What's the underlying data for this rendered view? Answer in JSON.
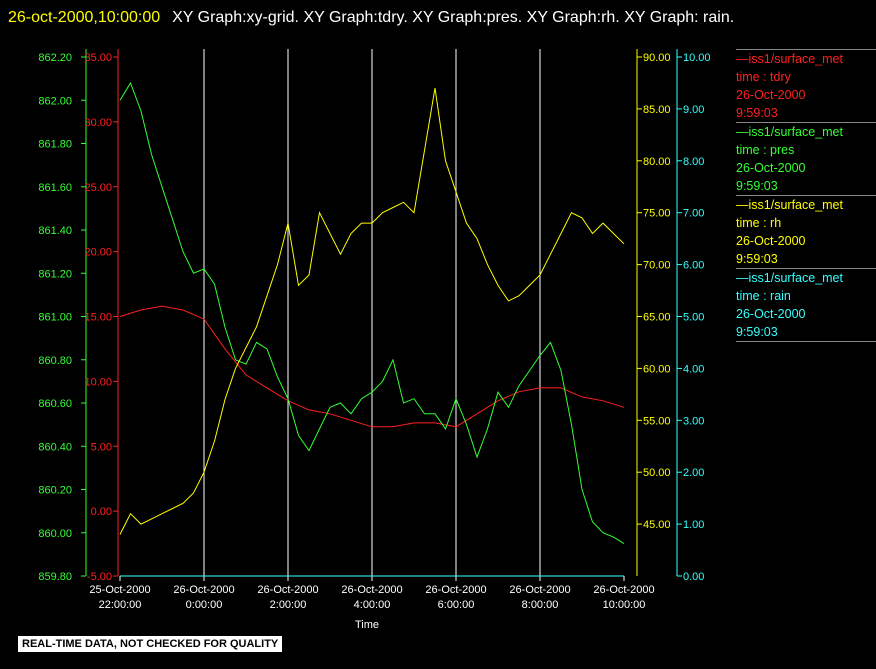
{
  "header": {
    "timestamp": "26-oct-2000,10:00:00",
    "titles": "XY Graph:xy-grid.  XY Graph:tdry.  XY Graph:pres.  XY Graph:rh.  XY Graph: rain."
  },
  "disclaimer": "REAL-TIME DATA, NOT CHECKED FOR QUALITY",
  "colors": {
    "tdry": "#ff2020",
    "pres": "#33ff33",
    "rh": "#ffff00",
    "rain": "#33ffff",
    "grid": "#ffffff"
  },
  "legend": [
    {
      "name": "—iss1/surface_met",
      "field": "time : tdry",
      "date": "26-Oct-2000",
      "time": "9:59:03",
      "color": "#ff2020"
    },
    {
      "name": "—iss1/surface_met",
      "field": "time : pres",
      "date": "26-Oct-2000",
      "time": "9:59:03",
      "color": "#33ff33"
    },
    {
      "name": "—iss1/surface_met",
      "field": "time : rh",
      "date": "26-Oct-2000",
      "time": "9:59:03",
      "color": "#ffff00"
    },
    {
      "name": "—iss1/surface_met",
      "field": "time : rain",
      "date": "26-Oct-2000",
      "time": "9:59:03",
      "color": "#33ffff"
    }
  ],
  "chart_data": {
    "type": "line",
    "xlabel": "Time",
    "x_range_hours": [
      -2,
      10
    ],
    "x_ticks": [
      {
        "date": "25-Oct-2000",
        "time": "22:00:00"
      },
      {
        "date": "26-Oct-2000",
        "time": "0:00:00"
      },
      {
        "date": "26-Oct-2000",
        "time": "2:00:00"
      },
      {
        "date": "26-Oct-2000",
        "time": "4:00:00"
      },
      {
        "date": "26-Oct-2000",
        "time": "6:00:00"
      },
      {
        "date": "26-Oct-2000",
        "time": "8:00:00"
      },
      {
        "date": "26-Oct-2000",
        "time": "10:00:00"
      }
    ],
    "grid": true,
    "axes": {
      "pres": {
        "range": [
          859.8,
          862.2
        ],
        "ticks": [
          "859.80",
          "860.00",
          "860.20",
          "860.40",
          "860.60",
          "860.80",
          "861.00",
          "861.20",
          "861.40",
          "861.60",
          "861.80",
          "862.00",
          "862.20"
        ],
        "color": "#33ff33"
      },
      "tdry": {
        "range": [
          -5,
          35
        ],
        "ticks": [
          "-5.00",
          "0.00",
          "5.00",
          "10.00",
          "15.00",
          "20.00",
          "25.00",
          "30.00",
          "35.00"
        ],
        "color": "#ff2020"
      },
      "rh": {
        "range": [
          40,
          90
        ],
        "ticks": [
          "45.00",
          "50.00",
          "55.00",
          "60.00",
          "65.00",
          "70.00",
          "75.00",
          "80.00",
          "85.00",
          "90.00"
        ],
        "color": "#ffff00"
      },
      "rain": {
        "range": [
          0,
          10
        ],
        "ticks": [
          "0.00",
          "1.00",
          "2.00",
          "3.00",
          "4.00",
          "5.00",
          "6.00",
          "7.00",
          "8.00",
          "9.00",
          "10.00"
        ],
        "color": "#33ffff"
      }
    },
    "series": [
      {
        "name": "tdry",
        "x": [
          -2,
          -1.5,
          -1,
          -0.5,
          0,
          0.5,
          1,
          1.5,
          2,
          2.5,
          3,
          3.5,
          4,
          4.5,
          5,
          5.5,
          6,
          6.5,
          7,
          7.5,
          8,
          8.5,
          9,
          9.5,
          10
        ],
        "values": [
          15,
          15.5,
          15.8,
          15.5,
          14.8,
          12.5,
          10.5,
          9.5,
          8.5,
          7.8,
          7.5,
          7,
          6.5,
          6.5,
          6.8,
          6.8,
          6.5,
          7.5,
          8.5,
          9.2,
          9.5,
          9.5,
          8.8,
          8.5,
          8
        ]
      },
      {
        "name": "pres",
        "x": [
          -2,
          -1.75,
          -1.5,
          -1.25,
          -1,
          -0.75,
          -0.5,
          -0.25,
          0,
          0.25,
          0.5,
          0.75,
          1,
          1.25,
          1.5,
          1.75,
          2,
          2.25,
          2.5,
          2.75,
          3,
          3.25,
          3.5,
          3.75,
          4,
          4.25,
          4.5,
          4.75,
          5,
          5.25,
          5.5,
          5.75,
          6,
          6.25,
          6.5,
          6.75,
          7,
          7.25,
          7.5,
          7.75,
          8,
          8.25,
          8.5,
          8.75,
          9,
          9.25,
          9.5,
          9.75,
          10
        ],
        "values": [
          862.0,
          862.08,
          861.95,
          861.75,
          861.6,
          861.45,
          861.3,
          861.2,
          861.22,
          861.15,
          860.95,
          860.8,
          860.78,
          860.88,
          860.85,
          860.72,
          860.62,
          860.45,
          860.38,
          860.48,
          860.58,
          860.6,
          860.55,
          860.62,
          860.65,
          860.7,
          860.8,
          860.6,
          860.62,
          860.55,
          860.55,
          860.48,
          860.62,
          860.5,
          860.35,
          860.48,
          860.65,
          860.58,
          860.68,
          860.75,
          860.82,
          860.88,
          860.75,
          860.5,
          860.2,
          860.05,
          860.0,
          859.98,
          859.95
        ]
      },
      {
        "name": "rh",
        "x": [
          -2,
          -1.75,
          -1.5,
          -1.25,
          -1,
          -0.75,
          -0.5,
          -0.25,
          0,
          0.25,
          0.5,
          0.75,
          1,
          1.25,
          1.5,
          1.75,
          2,
          2.25,
          2.5,
          2.75,
          3,
          3.25,
          3.5,
          3.75,
          4,
          4.25,
          4.5,
          4.75,
          5,
          5.25,
          5.5,
          5.75,
          6,
          6.25,
          6.5,
          6.75,
          7,
          7.25,
          7.5,
          7.75,
          8,
          8.25,
          8.5,
          8.75,
          9,
          9.25,
          9.5,
          9.75,
          10
        ],
        "values": [
          44,
          46,
          45,
          45.5,
          46,
          46.5,
          47,
          48,
          50,
          53,
          57,
          60,
          62,
          64,
          67,
          70,
          74,
          68,
          69,
          75,
          73,
          71,
          73,
          74,
          74,
          75,
          75.5,
          76,
          75,
          81,
          87,
          80,
          77,
          74,
          72.5,
          70,
          68,
          66.5,
          67,
          68,
          69,
          71,
          73,
          75,
          74.5,
          73,
          74,
          73,
          72
        ]
      },
      {
        "name": "rain",
        "x": [
          -2,
          10
        ],
        "values": [
          0,
          0
        ]
      }
    ]
  }
}
